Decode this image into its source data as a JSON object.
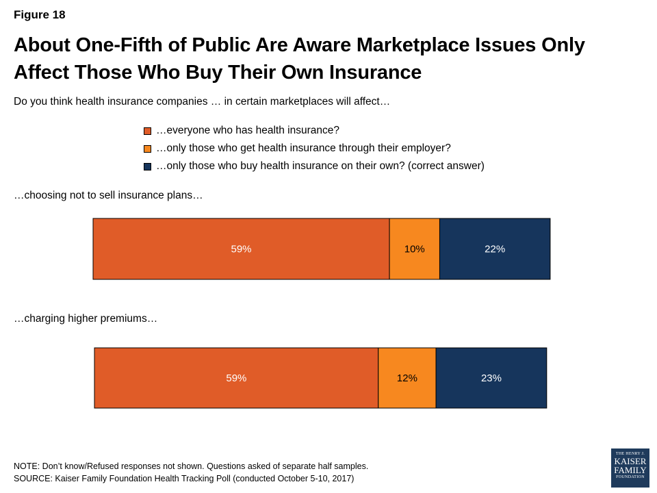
{
  "figure_label": "Figure 18",
  "title": "About One-Fifth of Public Are Aware Marketplace Issues Only Affect Those Who Buy Their Own Insurance",
  "subtitle": "Do you think health insurance companies … in certain marketplaces will affect…",
  "colors": {
    "everyone": "#e05c28",
    "employer": "#f7881f",
    "own": "#16355c"
  },
  "legend": [
    {
      "label": "…everyone who has health insurance?",
      "color": "#e05c28"
    },
    {
      "label": "…only those who get health insurance through their employer?",
      "color": "#f7881f"
    },
    {
      "label": "…only those who buy health insurance on their own? (correct answer)",
      "color": "#16355c"
    }
  ],
  "chart_data": {
    "type": "bar",
    "orientation": "horizontal-stacked",
    "categories": [
      "…choosing not to sell insurance plans…",
      "…charging higher premiums…"
    ],
    "series": [
      {
        "name": "…everyone who has health insurance?",
        "values": [
          59,
          59
        ],
        "labels": [
          "59%",
          "59%"
        ]
      },
      {
        "name": "…only those who get health insurance through their employer?",
        "values": [
          10,
          12
        ],
        "labels": [
          "10%",
          "12%"
        ]
      },
      {
        "name": "…only those who buy health insurance on their own? (correct answer)",
        "values": [
          22,
          23
        ],
        "labels": [
          "22%",
          "23%"
        ]
      }
    ],
    "title": "About One-Fifth of Public Are Aware Marketplace Issues Only Affect Those Who Buy Their Own Insurance",
    "xlabel": "",
    "ylabel": "",
    "grid": false,
    "legend_position": "top"
  },
  "notes": {
    "note": "NOTE: Don’t know/Refused responses not shown. Questions asked of separate half samples.",
    "source": "SOURCE: Kaiser Family Foundation Health Tracking Poll (conducted October 5-10, 2017)"
  },
  "logo": {
    "line1": "THE HENRY J.",
    "line2": "KAISER",
    "line3": "FAMILY",
    "line4": "FOUNDATION"
  }
}
